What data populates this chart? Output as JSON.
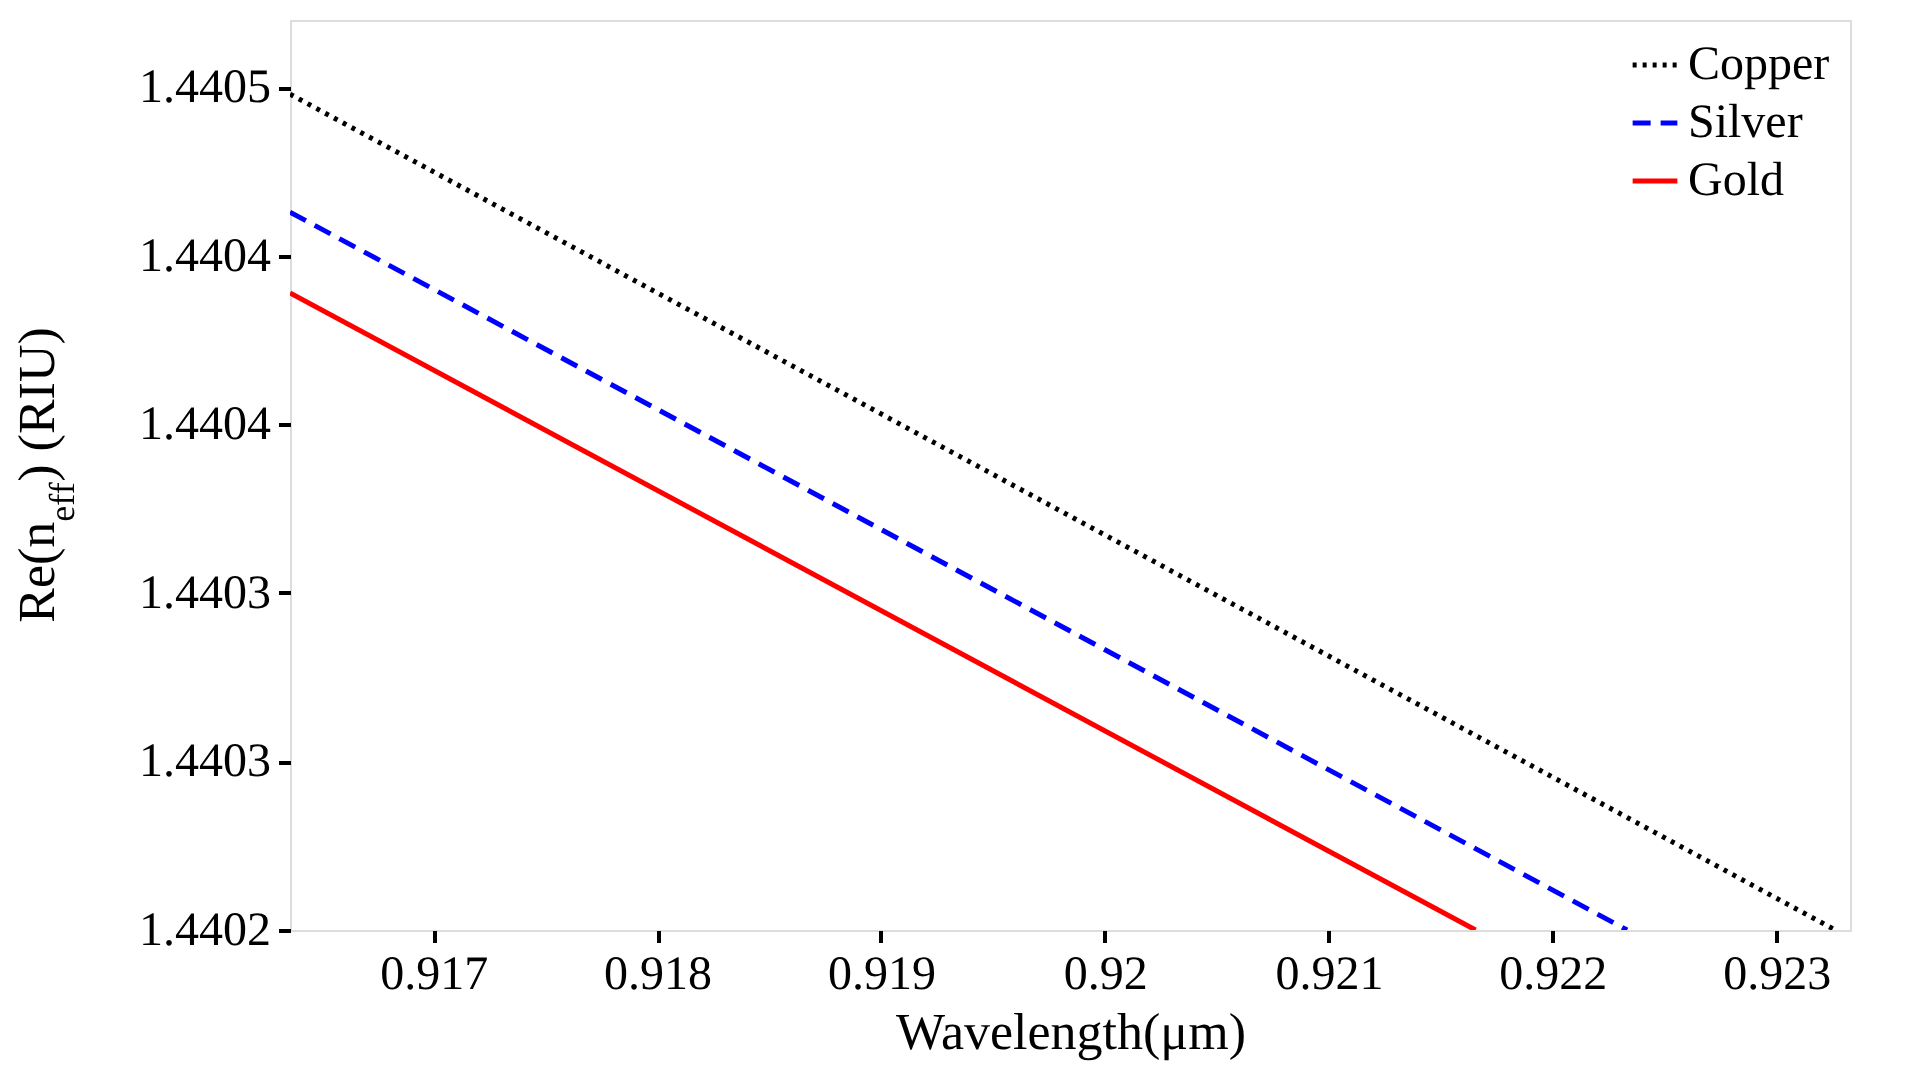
{
  "chart_data": {
    "type": "line",
    "xlabel": "Wavelength(μm)",
    "ylabel": "Re(n$_{eff}$) (RIU)",
    "xlim": [
      0.91636,
      0.92333
    ],
    "xticks": [
      0.917,
      0.918,
      0.919,
      0.92,
      0.921,
      0.922,
      0.923
    ],
    "ylim": [
      1.4402,
      1.44047
    ],
    "yticks": [
      {
        "value": 1.4402,
        "label": "1.4402"
      },
      {
        "value": 1.44025,
        "label": "1.4403"
      },
      {
        "value": 1.4403,
        "label": "1.4403"
      },
      {
        "value": 1.44035,
        "label": "1.4404"
      },
      {
        "value": 1.4404,
        "label": "1.4404"
      },
      {
        "value": 1.44045,
        "label": "1.4405"
      }
    ],
    "grid": false,
    "legend": "top right",
    "marker": "none",
    "series": [
      {
        "name": "Copper",
        "color": "#000000",
        "line_style": "dotted",
        "x": [
          0.91636,
          0.923264
        ],
        "values": [
          1.440448,
          1.4402
        ]
      },
      {
        "name": "Silver",
        "color": "#0000ff",
        "line_style": "dashed",
        "x": [
          0.91636,
          0.922334
        ],
        "values": [
          1.440413,
          1.4402
        ]
      },
      {
        "name": "Gold",
        "color": "#ff0000",
        "line_style": "solid",
        "x": [
          0.91636,
          0.921657
        ],
        "values": [
          1.440389,
          1.4402
        ]
      }
    ]
  }
}
